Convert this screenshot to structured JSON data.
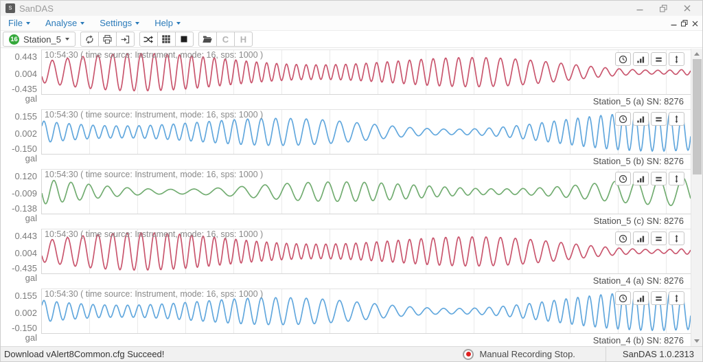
{
  "window": {
    "title": "SanDAS",
    "icon_letter": "s"
  },
  "menu": {
    "items": [
      {
        "label": "File"
      },
      {
        "label": "Analyse"
      },
      {
        "label": "Settings"
      },
      {
        "label": "Help"
      }
    ]
  },
  "toolbar": {
    "station_selector": {
      "badge": "16",
      "label": "Station_5"
    },
    "refresh_label": "C",
    "history_label": "H"
  },
  "panels": [
    {
      "header": "10:54:30 ( time source: Instrument, mode: 16, sps: 1000 )",
      "y_labels": [
        "0.443",
        "0.004",
        "-0.435"
      ],
      "unit": "gal",
      "station": "Station_5 (a) SN: 8276",
      "color": "#c9556d",
      "seed": 7,
      "freq": 0.36,
      "amp": 1
    },
    {
      "header": "10:54:30 ( time source: Instrument, mode: 16, sps: 1000 )",
      "y_labels": [
        "0.155",
        "0.002",
        "-0.150"
      ],
      "unit": "gal",
      "station": "Station_5 (b) SN: 8276",
      "color": "#61a7dd",
      "seed": 13,
      "freq": 0.31,
      "amp": 1
    },
    {
      "header": "10:54:30 ( time source: Instrument, mode: 16, sps: 1000 )",
      "y_labels": [
        "0.120",
        "-0.009",
        "-0.138"
      ],
      "unit": "gal",
      "station": "Station_5 (c) SN: 8276",
      "color": "#71ac70",
      "seed": 21,
      "freq": 0.23,
      "amp": 0.82
    },
    {
      "header": "10:54:30 ( time source: Instrument, mode: 16, sps: 1000 )",
      "y_labels": [
        "0.443",
        "0.004",
        "-0.435"
      ],
      "unit": "gal",
      "station": "Station_4 (a) SN: 8276",
      "color": "#c9556d",
      "seed": 7,
      "freq": 0.36,
      "amp": 1
    },
    {
      "header": "10:54:30 ( time source: Instrument, mode: 16, sps: 1000 )",
      "y_labels": [
        "0.155",
        "0.002",
        "-0.150"
      ],
      "unit": "gal",
      "station": "Station_4 (b) SN: 8276",
      "color": "#61a7dd",
      "seed": 13,
      "freq": 0.31,
      "amp": 1
    }
  ],
  "statusbar": {
    "message": "Download vAlert8Common.cfg Succeed!",
    "recording_status": "Manual Recording Stop.",
    "version": "SanDAS 1.0.2313"
  },
  "colors": {
    "accent_blue": "#2a7ab9",
    "badge_green": "#35a83b",
    "record_red": "#e02121",
    "wave_red": "#c9556d",
    "wave_blue": "#61a7dd",
    "wave_green": "#71ac70"
  }
}
